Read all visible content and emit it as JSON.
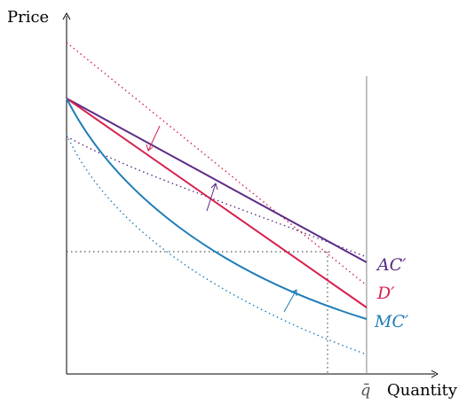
{
  "axes": {
    "y_label": "Price",
    "x_label": "Quantity",
    "capacity_label": "q̄"
  },
  "curve_labels": {
    "ac": "AC′",
    "d": "D′",
    "mc": "MC′"
  },
  "colors": {
    "ac": "#5b2a86",
    "d": "#d6204e",
    "mc": "#1f7db8",
    "axis": "#000000",
    "capacity": "#999999",
    "guide": "#555555"
  },
  "notes": {
    "shifts": "AC, D and MC are each drawn twice: the earlier position dotted, the new position (primed) solid. Small arrows mark the direction of each shift."
  }
}
